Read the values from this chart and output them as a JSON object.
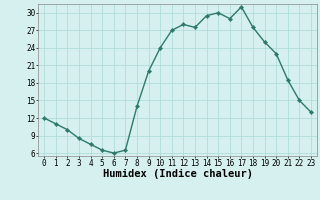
{
  "x": [
    0,
    1,
    2,
    3,
    4,
    5,
    6,
    7,
    8,
    9,
    10,
    11,
    12,
    13,
    14,
    15,
    16,
    17,
    18,
    19,
    20,
    21,
    22,
    23
  ],
  "y": [
    12,
    11,
    10,
    8.5,
    7.5,
    6.5,
    6,
    6.5,
    14,
    20,
    24,
    27,
    28,
    27.5,
    29.5,
    30,
    29,
    31,
    27.5,
    25,
    23,
    18.5,
    15,
    13
  ],
  "line_color": "#2d7a6a",
  "marker": "D",
  "marker_size": 2.2,
  "line_width": 1.0,
  "bg_color": "#d5f0ee",
  "grid_color": "#b0ddd8",
  "xlabel": "Humidex (Indice chaleur)",
  "xlim": [
    -0.5,
    23.5
  ],
  "ylim": [
    5.5,
    31.5
  ],
  "yticks": [
    6,
    9,
    12,
    15,
    18,
    21,
    24,
    27,
    30
  ],
  "xticks": [
    0,
    1,
    2,
    3,
    4,
    5,
    6,
    7,
    8,
    9,
    10,
    11,
    12,
    13,
    14,
    15,
    16,
    17,
    18,
    19,
    20,
    21,
    22,
    23
  ],
  "tick_fontsize": 5.5,
  "xlabel_fontsize": 7.5
}
